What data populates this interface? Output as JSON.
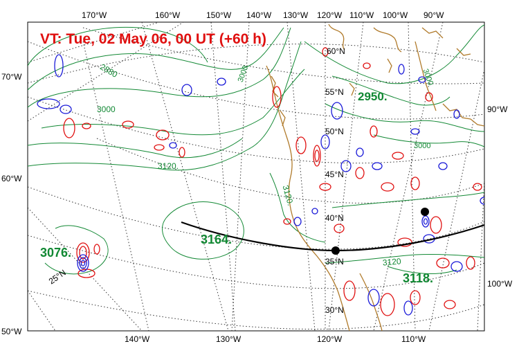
{
  "title": "VT:  Tue, 02 May 06, 00 UT (+60 h)",
  "colors": {
    "title": "#e01010",
    "height_contour": "#118833",
    "positive_contour": "#e01010",
    "negative_contour": "#1a1ad8",
    "coastline": "#b07a2a",
    "cross_section": "#000000",
    "graticule": "#333333"
  },
  "top_longitude_labels": [
    "170°W",
    "160°W",
    "150°W",
    "140°W",
    "130°W",
    "120°W",
    "110°W",
    "100°W",
    "90°W"
  ],
  "bottom_longitude_labels": [
    "140°W",
    "130°W",
    "120°W",
    "110°W"
  ],
  "left_latitude_labels": [
    "70°W",
    "60°W",
    "50°W"
  ],
  "right_labels": [
    "90°W",
    "100°W"
  ],
  "interior_latitude_labels": [
    "60°N",
    "55°N",
    "50°N",
    "45°N",
    "40°N",
    "35°N",
    "30°N",
    "25°N"
  ],
  "height_contour_labels": [
    "2880",
    "3000",
    "3000",
    "3120.",
    "3120.",
    "3120",
    "3000",
    "3000"
  ],
  "center_values": [
    "2950.",
    "3164.",
    "3076.",
    "3118."
  ],
  "markers": [
    "cross-section-start",
    "cross-section-end"
  ]
}
